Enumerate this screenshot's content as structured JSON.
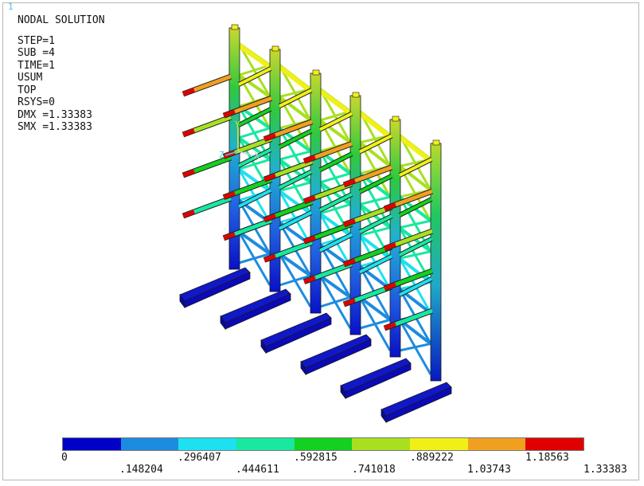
{
  "window": {
    "number": "1"
  },
  "info": {
    "title": "NODAL SOLUTION",
    "lines": [
      "STEP=1",
      "SUB =4",
      "TIME=1",
      "USUM",
      "TOP",
      "RSYS=0",
      "DMX =1.33383",
      "SMX =1.33383"
    ]
  },
  "triad": {
    "x": "X",
    "y": "Y",
    "z": "Z"
  },
  "legend": {
    "colors": [
      "#0000c8",
      "#1c8ce0",
      "#1ee0f0",
      "#18e8a0",
      "#14d020",
      "#a8e020",
      "#f0f018",
      "#f0a020",
      "#e00000"
    ],
    "labels": [
      "0",
      ".148204",
      ".296407",
      ".444611",
      ".592815",
      ".741018",
      ".889222",
      "1.03743",
      "1.18563",
      "1.33383"
    ]
  }
}
